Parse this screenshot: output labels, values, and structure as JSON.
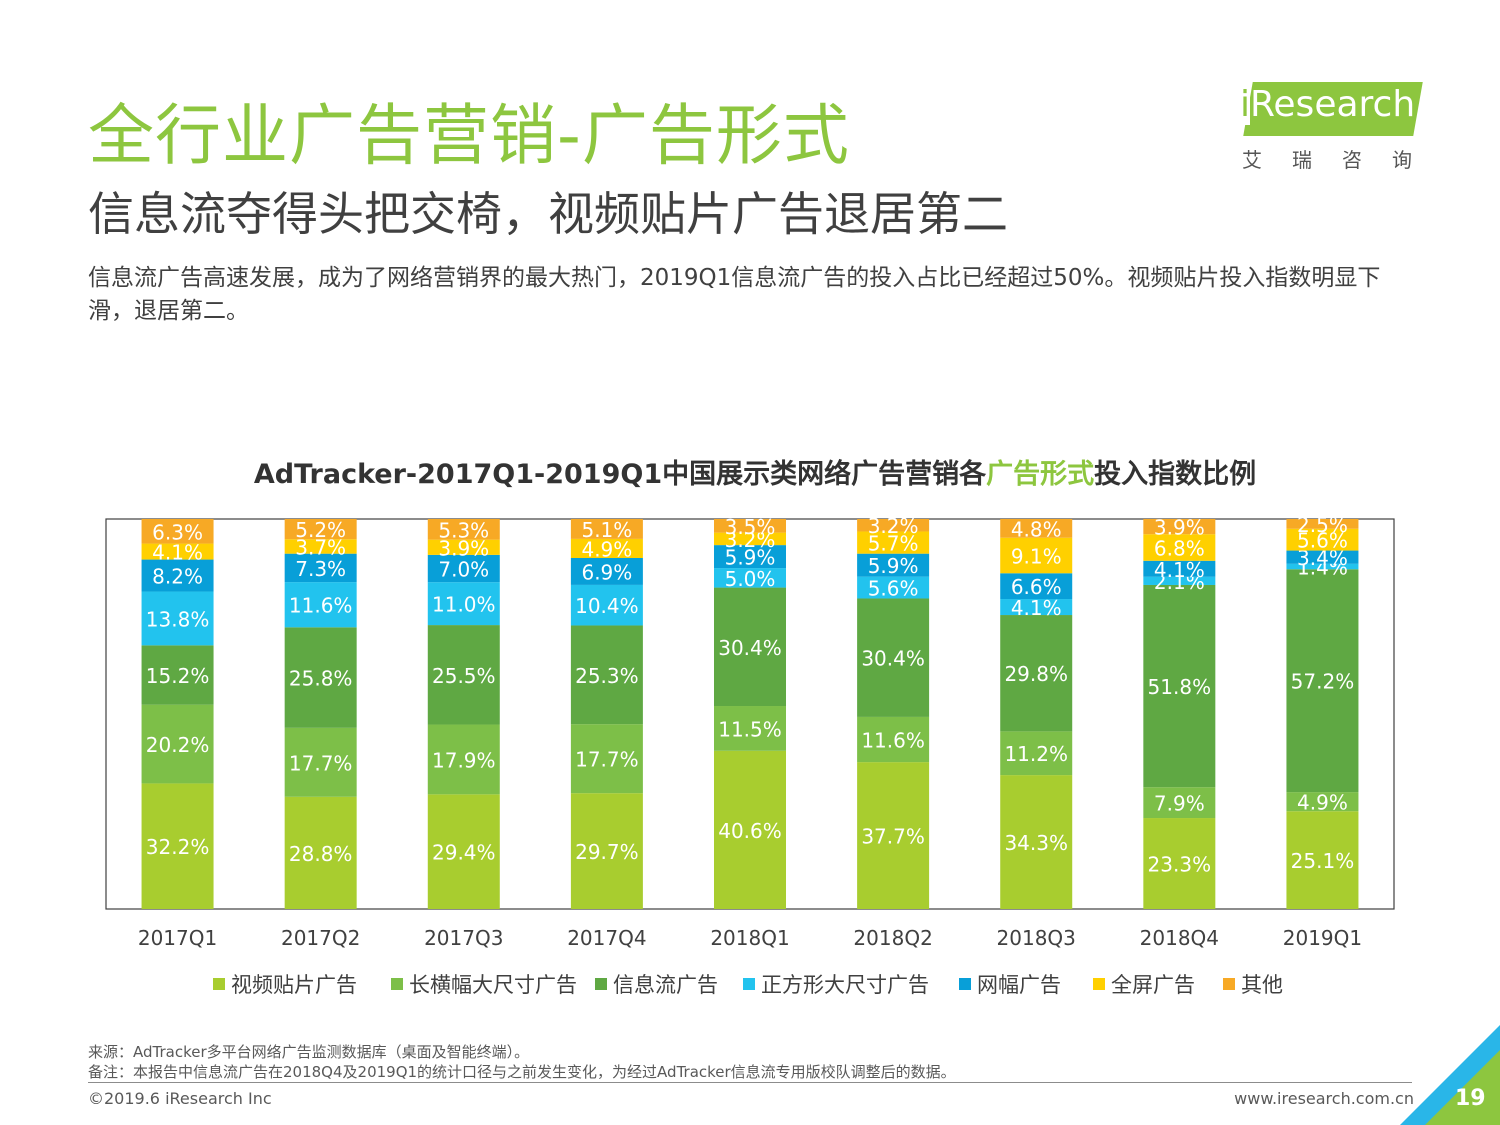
{
  "header": {
    "title": "全行业广告营销-广告形式",
    "subtitle": "信息流夺得头把交椅，视频贴片广告退居第二",
    "description": "信息流广告高速发展，成为了网络营销界的最大热门，2019Q1信息流广告的投入占比已经超过50%。视频贴片投入指数明显下滑，退居第二。"
  },
  "logo": {
    "i_letter": "i",
    "brand": "Research",
    "sub": "艾瑞咨询"
  },
  "chart_title": {
    "prefix": "AdTracker-2017Q1-2019Q1中国展示类网络广告营销各",
    "highlight": "广告形式",
    "suffix": "投入指数比例"
  },
  "chart_data": {
    "type": "bar",
    "stacked": true,
    "percent": true,
    "categories": [
      "2017Q1",
      "2017Q2",
      "2017Q3",
      "2017Q4",
      "2018Q1",
      "2018Q2",
      "2018Q3",
      "2018Q4",
      "2019Q1"
    ],
    "series": [
      {
        "name": "视频贴片广告",
        "color": "#a8cd2f",
        "values": [
          32.2,
          28.8,
          29.4,
          29.7,
          40.6,
          37.7,
          34.3,
          23.3,
          25.1
        ]
      },
      {
        "name": "长横幅大尺寸广告",
        "color": "#7dbf48",
        "values": [
          20.2,
          17.7,
          17.9,
          17.7,
          11.5,
          11.6,
          11.2,
          7.9,
          4.9
        ]
      },
      {
        "name": "信息流广告",
        "color": "#5fa843",
        "values": [
          15.2,
          25.8,
          25.5,
          25.3,
          30.4,
          30.4,
          29.8,
          51.8,
          57.2
        ]
      },
      {
        "name": "正方形大尺寸广告",
        "color": "#22c3ee",
        "values": [
          13.8,
          11.6,
          11.0,
          10.4,
          5.0,
          5.6,
          4.1,
          2.1,
          1.4
        ]
      },
      {
        "name": "网幅广告",
        "color": "#089fd8",
        "values": [
          8.2,
          7.3,
          7.0,
          6.9,
          5.9,
          5.9,
          6.6,
          4.1,
          3.4
        ]
      },
      {
        "name": "全屏广告",
        "color": "#ffd000",
        "values": [
          4.1,
          3.7,
          3.9,
          4.9,
          3.2,
          5.7,
          9.1,
          6.8,
          5.6
        ]
      },
      {
        "name": "其他",
        "color": "#f7a925",
        "values": [
          6.3,
          5.2,
          5.3,
          5.1,
          3.5,
          3.2,
          4.8,
          3.9,
          2.5
        ]
      }
    ],
    "ylim": [
      0,
      100
    ],
    "legend_position": "bottom"
  },
  "footer": {
    "source": "来源：AdTracker多平台网络广告监测数据库（桌面及智能终端）。",
    "note": "备注：本报告中信息流广告在2018Q4及2019Q1的统计口径与之前发生变化，为经过AdTracker信息流专用版校队调整后的数据。",
    "copyright": "©2019.6 iResearch Inc",
    "website": "www.iresearch.com.cn",
    "page": "19"
  },
  "colors": {
    "accent": "#8dc63f",
    "corner_blue": "#29b6e8"
  }
}
